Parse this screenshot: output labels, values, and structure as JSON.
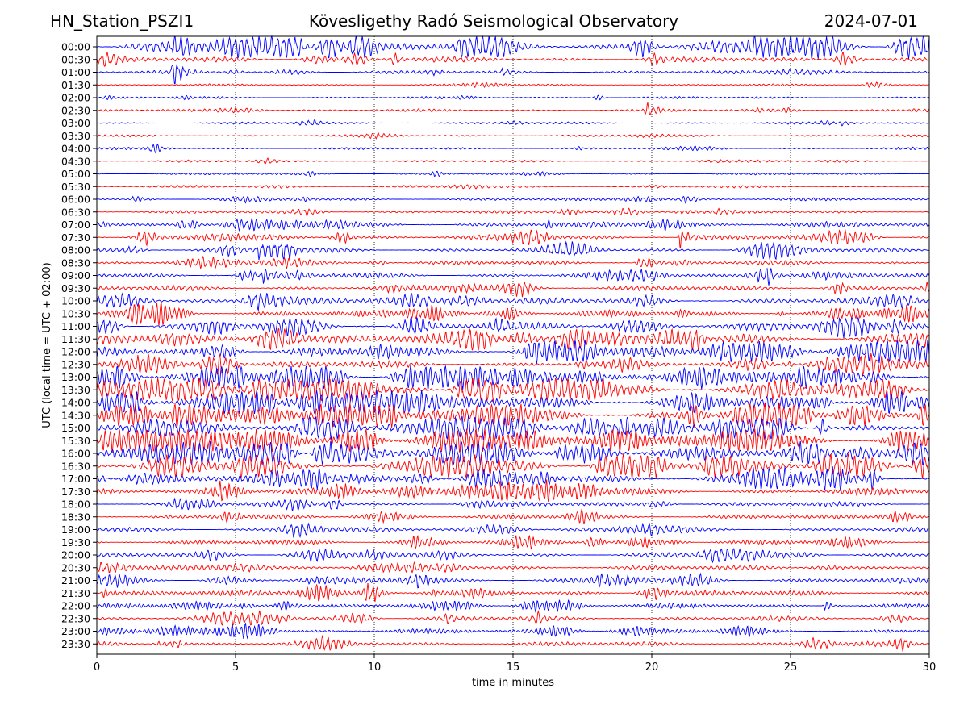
{
  "header": {
    "station": "HN_Station_PSZI1",
    "title": "Kövesligethy Radó Seismological Observatory",
    "date": "2024-07-01"
  },
  "chart_data": {
    "type": "line",
    "title": "Kövesligethy Radó Seismological Observatory",
    "xlabel": "time in minutes",
    "ylabel": "UTC (local time = UTC + 02:00)",
    "xlim": [
      0,
      30
    ],
    "xticks": [
      0,
      5,
      10,
      15,
      20,
      25,
      30
    ],
    "grid": "vertical dotted at x ticks",
    "colors": [
      "#0000ff",
      "#ff0000"
    ],
    "rows": [
      "00:00",
      "00:30",
      "01:00",
      "01:30",
      "02:00",
      "02:30",
      "03:00",
      "03:30",
      "04:00",
      "04:30",
      "05:00",
      "05:30",
      "06:00",
      "06:30",
      "07:00",
      "07:30",
      "08:00",
      "08:30",
      "09:00",
      "09:30",
      "10:00",
      "10:30",
      "11:00",
      "11:30",
      "12:00",
      "12:30",
      "13:00",
      "13:30",
      "14:00",
      "14:30",
      "15:00",
      "15:30",
      "16:00",
      "16:30",
      "17:00",
      "17:30",
      "18:00",
      "18:30",
      "19:00",
      "19:30",
      "20:00",
      "20:30",
      "21:00",
      "21:30",
      "22:00",
      "22:30",
      "23:00",
      "23:30"
    ],
    "activity": [
      0.9,
      0.35,
      0.15,
      0.03,
      0.05,
      0.08,
      0.05,
      0.04,
      0.06,
      0.04,
      0.04,
      0.07,
      0.12,
      0.12,
      0.35,
      0.35,
      0.35,
      0.25,
      0.35,
      0.35,
      0.45,
      0.45,
      0.55,
      0.7,
      0.75,
      0.5,
      0.8,
      1.0,
      1.0,
      1.0,
      1.0,
      1.0,
      1.0,
      1.0,
      0.8,
      0.5,
      0.3,
      0.25,
      0.25,
      0.3,
      0.3,
      0.3,
      0.35,
      0.35,
      0.3,
      0.3,
      0.3,
      0.3
    ],
    "events": [
      {
        "row": "00:00",
        "t": 2.8,
        "amp": 3.5
      },
      {
        "row": "00:00",
        "t": 9.2,
        "amp": 3.0
      },
      {
        "row": "00:00",
        "t": 13.0,
        "amp": 2.0
      },
      {
        "row": "01:00",
        "t": 2.7,
        "amp": 2.5
      },
      {
        "row": "01:00",
        "t": 14.6,
        "amp": 0.5
      },
      {
        "row": "02:00",
        "t": 13.1,
        "amp": 0.4
      },
      {
        "row": "02:30",
        "t": 19.8,
        "amp": 1.2
      },
      {
        "row": "03:00",
        "t": 7.8,
        "amp": 0.3
      },
      {
        "row": "03:00",
        "t": 26.8,
        "amp": 0.4
      },
      {
        "row": "04:00",
        "t": 1.9,
        "amp": 0.7
      },
      {
        "row": "06:00",
        "t": 1.3,
        "amp": 0.6
      },
      {
        "row": "06:30",
        "t": 22.3,
        "amp": 0.5
      },
      {
        "row": "07:30",
        "t": 21.0,
        "amp": 1.6
      },
      {
        "row": "08:00",
        "t": 5.8,
        "amp": 1.0
      },
      {
        "row": "09:00",
        "t": 6.0,
        "amp": 1.0
      },
      {
        "row": "14:30",
        "t": 22.8,
        "amp": 0.8
      },
      {
        "row": "16:30",
        "t": 20.2,
        "amp": 0.8
      },
      {
        "row": "21:00",
        "t": 11.5,
        "amp": 0.6
      },
      {
        "row": "21:30",
        "t": 0.2,
        "amp": 0.7
      },
      {
        "row": "22:00",
        "t": 26.2,
        "amp": 0.9
      },
      {
        "row": "22:00",
        "t": 6.6,
        "amp": 0.8
      },
      {
        "row": "23:30",
        "t": 25.7,
        "amp": 0.6
      }
    ]
  }
}
